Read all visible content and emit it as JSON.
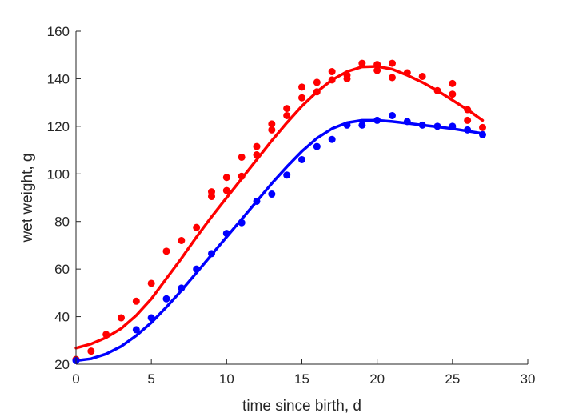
{
  "chart_data": {
    "type": "scatter",
    "xlabel": "time since birth, d",
    "ylabel": "wet weight, g",
    "xlim": [
      0,
      30
    ],
    "ylim": [
      20,
      160
    ],
    "xticks": [
      0,
      5,
      10,
      15,
      20,
      25,
      30
    ],
    "yticks": [
      20,
      40,
      60,
      80,
      100,
      120,
      140,
      160
    ],
    "grid": false,
    "legend": "none",
    "series": [
      {
        "color": "#ff0000",
        "points": [
          [
            0,
            22
          ],
          [
            1,
            25.5
          ],
          [
            2,
            32.5
          ],
          [
            3,
            39.5
          ],
          [
            4,
            46.5
          ],
          [
            5,
            54
          ],
          [
            6,
            67.5
          ],
          [
            7,
            72
          ],
          [
            8,
            77.5
          ],
          [
            9,
            90.5
          ],
          [
            9,
            92.5
          ],
          [
            10,
            93
          ],
          [
            10,
            98.5
          ],
          [
            11,
            99
          ],
          [
            11,
            107
          ],
          [
            12,
            108
          ],
          [
            12,
            111.5
          ],
          [
            13,
            118.5
          ],
          [
            13,
            121
          ],
          [
            14,
            124.5
          ],
          [
            14,
            127.5
          ],
          [
            15,
            132
          ],
          [
            15,
            136.5
          ],
          [
            16,
            134.5
          ],
          [
            16,
            138.5
          ],
          [
            17,
            139.5
          ],
          [
            17,
            143
          ],
          [
            18,
            140
          ],
          [
            18,
            141.5
          ],
          [
            19,
            146.5
          ],
          [
            20,
            146
          ],
          [
            20,
            143.5
          ],
          [
            21,
            146.5
          ],
          [
            21,
            140.5
          ],
          [
            22,
            142.5
          ],
          [
            23,
            141
          ],
          [
            24,
            135
          ],
          [
            25,
            138
          ],
          [
            25,
            133.5
          ],
          [
            26,
            127
          ],
          [
            26,
            122.5
          ],
          [
            27,
            119.5
          ]
        ],
        "fit": [
          [
            0,
            26.8
          ],
          [
            1,
            28.5
          ],
          [
            2,
            31.2
          ],
          [
            3,
            35
          ],
          [
            4,
            40.5
          ],
          [
            5,
            47.5
          ],
          [
            6,
            56
          ],
          [
            7,
            64.5
          ],
          [
            8,
            73.5
          ],
          [
            9,
            82
          ],
          [
            10,
            90
          ],
          [
            11,
            98
          ],
          [
            12,
            106
          ],
          [
            13,
            114
          ],
          [
            14,
            121.5
          ],
          [
            15,
            128.5
          ],
          [
            16,
            134.5
          ],
          [
            17,
            139.5
          ],
          [
            18,
            143
          ],
          [
            19,
            145
          ],
          [
            20,
            145.2
          ],
          [
            21,
            144
          ],
          [
            22,
            141.5
          ],
          [
            23,
            138.5
          ],
          [
            24,
            135
          ],
          [
            25,
            131
          ],
          [
            26,
            127
          ],
          [
            27,
            122.5
          ]
        ]
      },
      {
        "color": "#0000ff",
        "points": [
          [
            0,
            21.5
          ],
          [
            4,
            34.5
          ],
          [
            5,
            39.5
          ],
          [
            6,
            47.5
          ],
          [
            7,
            52
          ],
          [
            8,
            60
          ],
          [
            9,
            66.5
          ],
          [
            10,
            75
          ],
          [
            11,
            79.5
          ],
          [
            12,
            88.5
          ],
          [
            13,
            91.5
          ],
          [
            14,
            99.5
          ],
          [
            15,
            106
          ],
          [
            16,
            111.5
          ],
          [
            17,
            114.5
          ],
          [
            18,
            120.5
          ],
          [
            19,
            120.5
          ],
          [
            20,
            122.5
          ],
          [
            21,
            124.5
          ],
          [
            22,
            122
          ],
          [
            23,
            120.5
          ],
          [
            24,
            120
          ],
          [
            25,
            120
          ],
          [
            26,
            118.5
          ],
          [
            27,
            116.5
          ]
        ],
        "fit": [
          [
            0,
            21.5
          ],
          [
            1,
            22.3
          ],
          [
            2,
            24.3
          ],
          [
            3,
            27.5
          ],
          [
            4,
            32
          ],
          [
            5,
            37.5
          ],
          [
            6,
            44
          ],
          [
            7,
            51
          ],
          [
            8,
            58.5
          ],
          [
            9,
            66
          ],
          [
            10,
            73.5
          ],
          [
            11,
            81
          ],
          [
            12,
            88.5
          ],
          [
            13,
            96
          ],
          [
            14,
            103
          ],
          [
            15,
            109.5
          ],
          [
            16,
            115
          ],
          [
            17,
            119
          ],
          [
            18,
            121.5
          ],
          [
            19,
            122.5
          ],
          [
            20,
            122.5
          ],
          [
            21,
            122
          ],
          [
            22,
            121.3
          ],
          [
            23,
            120.5
          ],
          [
            24,
            119.8
          ],
          [
            25,
            119
          ],
          [
            26,
            118
          ],
          [
            27,
            117
          ]
        ]
      }
    ]
  }
}
